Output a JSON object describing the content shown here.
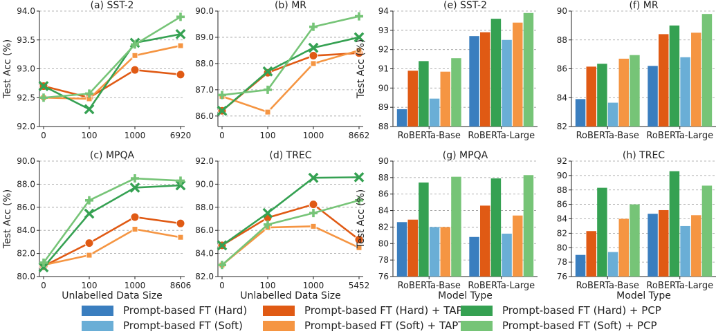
{
  "series_names": [
    "Prompt-based FT (Hard)",
    "Prompt-based FT (Soft)",
    "Prompt-based FT (Hard) + TAPT",
    "Prompt-based FT (Soft) + TAPT",
    "Prompt-based FT (Hard) + PCP",
    "Prompt-based FT (Soft) + PCP"
  ],
  "colors": {
    "hard": "#3a7ebf",
    "soft": "#6aaed6",
    "hard_tapt": "#e05a14",
    "soft_tapt": "#f59542",
    "hard_pcp": "#35a152",
    "soft_pcp": "#76c477"
  },
  "chart_data": [
    {
      "type": "line",
      "title": "(a) SST-2",
      "xlabel": "",
      "ylabel": "Test Acc (%)",
      "categories": [
        "0",
        "100",
        "1000",
        "6920"
      ],
      "ylim": [
        92.0,
        94.0
      ],
      "yticks": [
        "92.0",
        "92.5",
        "93.0",
        "93.5",
        "94.0"
      ],
      "grid": true,
      "series": [
        {
          "key": "hard_tapt",
          "marker": "circle",
          "values": [
            92.7,
            92.5,
            92.98,
            92.9
          ]
        },
        {
          "key": "soft_tapt",
          "marker": "square",
          "values": [
            92.5,
            92.48,
            93.23,
            93.4
          ]
        },
        {
          "key": "hard_pcp",
          "marker": "x",
          "values": [
            92.7,
            92.3,
            93.45,
            93.6
          ]
        },
        {
          "key": "soft_pcp",
          "marker": "plus",
          "values": [
            92.5,
            92.57,
            93.42,
            93.9
          ]
        }
      ]
    },
    {
      "type": "line",
      "title": "(b) MR",
      "xlabel": "",
      "ylabel": "",
      "categories": [
        "0",
        "100",
        "1000",
        "8662"
      ],
      "ylim": [
        85.6,
        90.0
      ],
      "yticks": [
        "86.0",
        "87.0",
        "88.0",
        "89.0",
        "90.0"
      ],
      "grid": true,
      "series": [
        {
          "key": "hard_tapt",
          "marker": "circle",
          "values": [
            86.2,
            87.65,
            88.3,
            88.4
          ]
        },
        {
          "key": "soft_tapt",
          "marker": "square",
          "values": [
            86.75,
            86.15,
            88.0,
            88.5
          ]
        },
        {
          "key": "hard_pcp",
          "marker": "x",
          "values": [
            86.2,
            87.7,
            88.6,
            89.0
          ]
        },
        {
          "key": "soft_pcp",
          "marker": "plus",
          "values": [
            86.8,
            87.0,
            89.4,
            89.8
          ]
        }
      ]
    },
    {
      "type": "line",
      "title": "(c) MPQA",
      "xlabel": "Unlabelled Data Size",
      "ylabel": "Test Acc (%)",
      "categories": [
        "0",
        "100",
        "1000",
        "8606"
      ],
      "ylim": [
        80.0,
        90.0
      ],
      "yticks": [
        "80.0",
        "82.0",
        "84.0",
        "86.0",
        "88.0",
        "90.0"
      ],
      "grid": true,
      "series": [
        {
          "key": "hard_tapt",
          "marker": "circle",
          "values": [
            80.9,
            82.9,
            85.15,
            84.6
          ]
        },
        {
          "key": "soft_tapt",
          "marker": "square",
          "values": [
            81.0,
            81.85,
            84.1,
            83.4
          ]
        },
        {
          "key": "hard_pcp",
          "marker": "x",
          "values": [
            80.8,
            85.45,
            87.7,
            87.9
          ]
        },
        {
          "key": "soft_pcp",
          "marker": "plus",
          "values": [
            81.2,
            86.6,
            88.5,
            88.3
          ]
        }
      ]
    },
    {
      "type": "line",
      "title": "(d) TREC",
      "xlabel": "Unlabelled Data Size",
      "ylabel": "",
      "categories": [
        "0",
        "100",
        "1000",
        "5452"
      ],
      "ylim": [
        82.0,
        92.0
      ],
      "yticks": [
        "82.0",
        "84.0",
        "86.0",
        "88.0",
        "90.0",
        "92.0"
      ],
      "grid": true,
      "series": [
        {
          "key": "hard_tapt",
          "marker": "circle",
          "values": [
            84.7,
            87.1,
            88.25,
            85.2
          ]
        },
        {
          "key": "soft_tapt",
          "marker": "square",
          "values": [
            83.0,
            86.25,
            86.35,
            84.5
          ]
        },
        {
          "key": "hard_pcp",
          "marker": "x",
          "values": [
            84.7,
            87.5,
            90.55,
            90.6
          ]
        },
        {
          "key": "soft_pcp",
          "marker": "plus",
          "values": [
            83.0,
            86.5,
            87.5,
            88.6
          ]
        }
      ]
    },
    {
      "type": "bar",
      "title": "(e) SST-2",
      "xlabel": "",
      "ylabel": "Test Acc (%)",
      "categories": [
        "RoBERTa-Base",
        "RoBERTa-Large"
      ],
      "ylim": [
        88,
        94
      ],
      "yticks": [
        "88",
        "89",
        "90",
        "91",
        "92",
        "93",
        "94"
      ],
      "grid": true,
      "series": [
        {
          "key": "hard",
          "values": [
            88.9,
            92.7
          ]
        },
        {
          "key": "hard_tapt",
          "values": [
            90.9,
            92.9
          ]
        },
        {
          "key": "hard_pcp",
          "values": [
            91.4,
            93.6
          ]
        },
        {
          "key": "soft",
          "values": [
            89.45,
            92.5
          ]
        },
        {
          "key": "soft_tapt",
          "values": [
            90.85,
            93.4
          ]
        },
        {
          "key": "soft_pcp",
          "values": [
            91.55,
            93.9
          ]
        }
      ]
    },
    {
      "type": "bar",
      "title": "(f) MR",
      "xlabel": "",
      "ylabel": "",
      "categories": [
        "RoBERTa-Base",
        "RoBERTa-Large"
      ],
      "ylim": [
        82,
        90
      ],
      "yticks": [
        "82",
        "84",
        "86",
        "88",
        "90"
      ],
      "grid": true,
      "series": [
        {
          "key": "hard",
          "values": [
            83.9,
            86.2
          ]
        },
        {
          "key": "hard_tapt",
          "values": [
            86.15,
            88.4
          ]
        },
        {
          "key": "hard_pcp",
          "values": [
            86.35,
            89.0
          ]
        },
        {
          "key": "soft",
          "values": [
            83.65,
            86.8
          ]
        },
        {
          "key": "soft_tapt",
          "values": [
            86.7,
            88.5
          ]
        },
        {
          "key": "soft_pcp",
          "values": [
            86.95,
            89.8
          ]
        }
      ]
    },
    {
      "type": "bar",
      "title": "(g) MPQA",
      "xlabel": "Model Type",
      "ylabel": "Test Acc (%)",
      "categories": [
        "RoBERTa-Base",
        "RoBERTa-Large"
      ],
      "ylim": [
        76,
        90
      ],
      "yticks": [
        "76",
        "78",
        "80",
        "82",
        "84",
        "86",
        "88",
        "90"
      ],
      "grid": true,
      "series": [
        {
          "key": "hard",
          "values": [
            82.6,
            80.8
          ]
        },
        {
          "key": "hard_tapt",
          "values": [
            82.9,
            84.6
          ]
        },
        {
          "key": "hard_pcp",
          "values": [
            87.4,
            87.9
          ]
        },
        {
          "key": "soft",
          "values": [
            82.0,
            81.2
          ]
        },
        {
          "key": "soft_tapt",
          "values": [
            82.0,
            83.4
          ]
        },
        {
          "key": "soft_pcp",
          "values": [
            88.1,
            88.3
          ]
        }
      ]
    },
    {
      "type": "bar",
      "title": "(h) TREC",
      "xlabel": "Model Type",
      "ylabel": "",
      "categories": [
        "RoBERTa-Base",
        "RoBERTa-Large"
      ],
      "ylim": [
        76,
        92
      ],
      "yticks": [
        "76",
        "78",
        "80",
        "82",
        "84",
        "86",
        "88",
        "90",
        "92"
      ],
      "grid": true,
      "series": [
        {
          "key": "hard",
          "values": [
            79.0,
            84.7
          ]
        },
        {
          "key": "hard_tapt",
          "values": [
            82.3,
            85.2
          ]
        },
        {
          "key": "hard_pcp",
          "values": [
            88.3,
            90.6
          ]
        },
        {
          "key": "soft",
          "values": [
            79.4,
            83.0
          ]
        },
        {
          "key": "soft_tapt",
          "values": [
            84.0,
            84.5
          ]
        },
        {
          "key": "soft_pcp",
          "values": [
            86.0,
            88.6
          ]
        }
      ]
    }
  ]
}
